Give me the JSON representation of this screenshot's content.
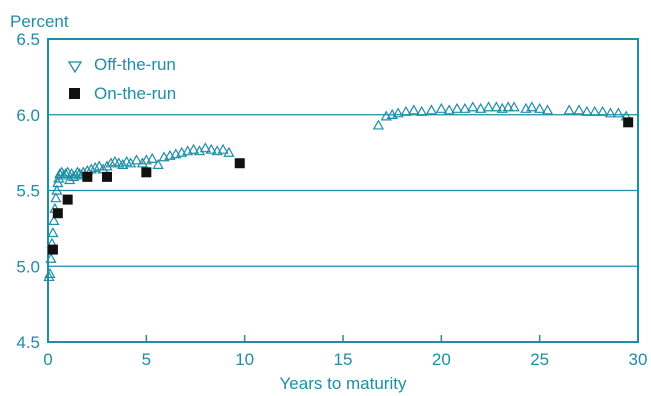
{
  "colors": {
    "axis": "#1e8ea6",
    "grid": "#1e8ea6",
    "off_the_run": "#1e8ea6",
    "on_the_run": "#111111"
  },
  "chart_data": {
    "type": "scatter",
    "title": "",
    "ylabel": "Percent",
    "xlabel": "Years to maturity",
    "xlim": [
      0,
      30
    ],
    "ylim": [
      4.5,
      6.5
    ],
    "x_ticks": [
      "0",
      "5",
      "10",
      "15",
      "20",
      "25",
      "30"
    ],
    "y_ticks": [
      "4.5",
      "5.0",
      "5.5",
      "6.0",
      "6.5"
    ],
    "gridlines_y": [
      5.0,
      5.5,
      6.0
    ],
    "legend": {
      "position": "top-left"
    },
    "series": [
      {
        "name": "Off-the-run",
        "marker": "open-triangle",
        "points": [
          [
            0.05,
            4.93
          ],
          [
            0.1,
            4.95
          ],
          [
            0.15,
            5.05
          ],
          [
            0.2,
            5.15
          ],
          [
            0.25,
            5.22
          ],
          [
            0.3,
            5.3
          ],
          [
            0.35,
            5.38
          ],
          [
            0.4,
            5.45
          ],
          [
            0.45,
            5.5
          ],
          [
            0.5,
            5.55
          ],
          [
            0.55,
            5.58
          ],
          [
            0.6,
            5.61
          ],
          [
            0.7,
            5.62
          ],
          [
            0.8,
            5.6
          ],
          [
            0.9,
            5.61
          ],
          [
            1.0,
            5.62
          ],
          [
            1.1,
            5.57
          ],
          [
            1.2,
            5.61
          ],
          [
            1.3,
            5.59
          ],
          [
            1.4,
            5.6
          ],
          [
            1.5,
            5.62
          ],
          [
            1.6,
            5.61
          ],
          [
            1.7,
            5.6
          ],
          [
            1.8,
            5.62
          ],
          [
            2.0,
            5.63
          ],
          [
            2.2,
            5.64
          ],
          [
            2.4,
            5.65
          ],
          [
            2.6,
            5.66
          ],
          [
            2.8,
            5.64
          ],
          [
            3.0,
            5.66
          ],
          [
            3.2,
            5.68
          ],
          [
            3.4,
            5.69
          ],
          [
            3.6,
            5.68
          ],
          [
            3.8,
            5.67
          ],
          [
            4.0,
            5.69
          ],
          [
            4.2,
            5.68
          ],
          [
            4.5,
            5.7
          ],
          [
            4.8,
            5.68
          ],
          [
            5.0,
            5.7
          ],
          [
            5.3,
            5.71
          ],
          [
            5.6,
            5.67
          ],
          [
            5.9,
            5.72
          ],
          [
            6.2,
            5.73
          ],
          [
            6.5,
            5.74
          ],
          [
            6.8,
            5.75
          ],
          [
            7.1,
            5.76
          ],
          [
            7.4,
            5.77
          ],
          [
            7.7,
            5.76
          ],
          [
            8.0,
            5.78
          ],
          [
            8.3,
            5.77
          ],
          [
            8.6,
            5.76
          ],
          [
            8.9,
            5.77
          ],
          [
            9.2,
            5.75
          ],
          [
            16.8,
            5.93
          ],
          [
            17.2,
            5.99
          ],
          [
            17.5,
            6.0
          ],
          [
            17.8,
            6.01
          ],
          [
            18.2,
            6.02
          ],
          [
            18.6,
            6.03
          ],
          [
            19.0,
            6.02
          ],
          [
            19.5,
            6.03
          ],
          [
            20.0,
            6.04
          ],
          [
            20.4,
            6.03
          ],
          [
            20.8,
            6.04
          ],
          [
            21.2,
            6.04
          ],
          [
            21.6,
            6.05
          ],
          [
            22.0,
            6.04
          ],
          [
            22.4,
            6.05
          ],
          [
            22.8,
            6.05
          ],
          [
            23.1,
            6.04
          ],
          [
            23.4,
            6.05
          ],
          [
            23.7,
            6.05
          ],
          [
            24.3,
            6.04
          ],
          [
            24.6,
            6.05
          ],
          [
            25.0,
            6.04
          ],
          [
            25.4,
            6.03
          ],
          [
            26.5,
            6.03
          ],
          [
            27.0,
            6.03
          ],
          [
            27.4,
            6.02
          ],
          [
            27.8,
            6.02
          ],
          [
            28.2,
            6.02
          ],
          [
            28.6,
            6.01
          ],
          [
            29.0,
            6.01
          ],
          [
            29.4,
            5.99
          ]
        ]
      },
      {
        "name": "On-the-run",
        "marker": "filled-square",
        "points": [
          [
            0.25,
            5.11
          ],
          [
            0.5,
            5.35
          ],
          [
            1.0,
            5.44
          ],
          [
            2.0,
            5.59
          ],
          [
            3.0,
            5.59
          ],
          [
            5.0,
            5.62
          ],
          [
            9.75,
            5.68
          ],
          [
            29.5,
            5.95
          ]
        ]
      }
    ]
  }
}
